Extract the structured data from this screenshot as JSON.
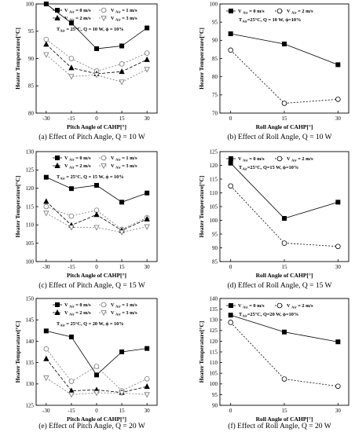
{
  "chart_data": [
    {
      "type": "line",
      "caption": "(a) Effect of Pitch Angle, Q = 10 W",
      "xlabel": "Pitch Angle of CAHP[°]",
      "ylabel": "Heater Temperature[°C]",
      "x": [
        -30,
        -15,
        0,
        15,
        30
      ],
      "xticks": [
        "-30",
        "-15",
        "0",
        "15",
        "30"
      ],
      "ylim": [
        80,
        100
      ],
      "yticks": [
        80,
        85,
        90,
        95,
        100
      ],
      "legend": [
        "V Air = 0 m/s",
        "V Air = 1 m/s",
        "V Air = 2 m/s",
        "V Air = 3 m/s"
      ],
      "condition": "T Air = 25°C, Q = 10 W, ϕ = 10%",
      "series": [
        {
          "name": "V Air = 0 m/s",
          "values": [
            100.0,
            96.5,
            91.8,
            92.3,
            95.6
          ]
        },
        {
          "name": "V Air = 1 m/s",
          "values": [
            93.5,
            90.0,
            87.7,
            89.0,
            91.0
          ]
        },
        {
          "name": "V Air = 2 m/s",
          "values": [
            92.6,
            88.3,
            87.2,
            87.6,
            89.8
          ]
        },
        {
          "name": "V Air = 3 m/s",
          "values": [
            90.7,
            86.7,
            87.0,
            85.7,
            88.0
          ]
        }
      ]
    },
    {
      "type": "line",
      "caption": "(b) Effect of Roll Angle, Q = 10 W",
      "xlabel": "Roll Angle of CAHP[°]",
      "ylabel": "Heater Temperature[°C]",
      "x": [
        0,
        15,
        30
      ],
      "xticks": [
        "0",
        "15",
        "30"
      ],
      "ylim": [
        70,
        100
      ],
      "yticks": [
        70,
        75,
        80,
        85,
        90,
        95,
        100
      ],
      "legend": [
        "V Air = 0 m/s",
        "V Air = 2 m/s"
      ],
      "condition": "T Air=25°C, Q = 10 W, ϕ=10%",
      "series": [
        {
          "name": "V Air = 0 m/s",
          "values": [
            91.8,
            89.0,
            83.3
          ]
        },
        {
          "name": "V Air = 2 m/s",
          "values": [
            87.3,
            72.7,
            73.8
          ]
        }
      ]
    },
    {
      "type": "line",
      "caption": "(c) Effect of Pitch Angle, Q = 15 W",
      "xlabel": "Pitch Angle of CAHP[°]",
      "ylabel": "Heater Temperature[°C]",
      "x": [
        -30,
        -15,
        0,
        15,
        30
      ],
      "xticks": [
        "-30",
        "-15",
        "0",
        "15",
        "30"
      ],
      "ylim": [
        100,
        130
      ],
      "yticks": [
        100,
        105,
        110,
        115,
        120,
        125,
        130
      ],
      "legend": [
        "V Air = 0 m/s",
        "V Air = 1 m/s",
        "V Air = 2 m/s",
        "V Air = 3 m/s"
      ],
      "condition": "T Air = 25°C, Q = 15 W, ϕ = 10%",
      "series": [
        {
          "name": "V Air = 0 m/s",
          "values": [
            123.0,
            119.9,
            120.8,
            116.2,
            118.7
          ]
        },
        {
          "name": "V Air = 1 m/s",
          "values": [
            115.0,
            112.4,
            114.0,
            108.8,
            112.0
          ]
        },
        {
          "name": "V Air = 2 m/s",
          "values": [
            116.4,
            109.9,
            112.8,
            108.5,
            111.6
          ]
        },
        {
          "name": "V Air = 3 m/s",
          "values": [
            113.2,
            109.3,
            109.3,
            108.0,
            109.5
          ]
        }
      ]
    },
    {
      "type": "line",
      "caption": "(d) Effect of Roll Angle, Q = 15 W",
      "xlabel": "Roll Angle of CAHP[°]",
      "ylabel": "Heater Temperature[°C]",
      "x": [
        0,
        15,
        30
      ],
      "xticks": [
        "0",
        "15",
        "30"
      ],
      "ylim": [
        85,
        125
      ],
      "yticks": [
        85,
        90,
        95,
        100,
        105,
        110,
        115,
        120,
        125
      ],
      "legend": [
        "V Air = 0 m/s",
        "V Air = 2 m/s"
      ],
      "condition": "T Air=25°C, Q=15 W, ϕ=10%",
      "series": [
        {
          "name": "V Air = 0 m/s",
          "values": [
            120.8,
            100.7,
            106.6
          ]
        },
        {
          "name": "V Air = 2 m/s",
          "values": [
            112.5,
            91.7,
            90.5
          ]
        }
      ]
    },
    {
      "type": "line",
      "caption": "(e) Effect of Pitch Angle, Q = 20 W",
      "xlabel": "Pitch Angle of CAHP[°]",
      "ylabel": "Heater Temperature[°C]",
      "x": [
        -30,
        -15,
        0,
        15,
        30
      ],
      "xticks": [
        "-30",
        "-15",
        "0",
        "15",
        "30"
      ],
      "ylim": [
        125,
        150
      ],
      "yticks": [
        125,
        130,
        135,
        140,
        145,
        150
      ],
      "legend": [
        "V Air = 0 m/s",
        "V Air = 1 m/s",
        "V Air = 2 m/s",
        "V Air = 3 m/s"
      ],
      "condition": "T Air = 25°C, Q = 20 W, ϕ = 10%",
      "series": [
        {
          "name": "V Air = 0 m/s",
          "values": [
            142.4,
            141.0,
            132.1,
            137.5,
            138.3
          ]
        },
        {
          "name": "V Air = 1 m/s",
          "values": [
            138.2,
            130.6,
            134.1,
            128.4,
            131.2
          ]
        },
        {
          "name": "V Air = 2 m/s",
          "values": [
            135.9,
            128.4,
            128.6,
            128.0,
            129.4
          ]
        },
        {
          "name": "V Air = 3 m/s",
          "values": [
            131.4,
            127.5,
            127.9,
            127.9,
            127.5
          ]
        }
      ]
    },
    {
      "type": "line",
      "caption": "(f) Effect of Roll Angle, Q = 20 W",
      "xlabel": "Roll Angle of CAHP[°]",
      "ylabel": "Heater Temperature[°C]",
      "x": [
        0,
        15,
        30
      ],
      "xticks": [
        "0",
        "15",
        "30"
      ],
      "ylim": [
        90,
        140
      ],
      "yticks": [
        90,
        95,
        100,
        105,
        110,
        115,
        120,
        125,
        130,
        135,
        140
      ],
      "legend": [
        "V Air = 0 m/s",
        "V Air = 2 m/s"
      ],
      "condition": "T Air=25°C, Q=20 W, ϕ=10%",
      "series": [
        {
          "name": "V Air = 0 m/s",
          "values": [
            132.2,
            124.3,
            119.7
          ]
        },
        {
          "name": "V Air = 2 m/s",
          "values": [
            128.8,
            102.3,
            98.9
          ]
        }
      ]
    }
  ]
}
